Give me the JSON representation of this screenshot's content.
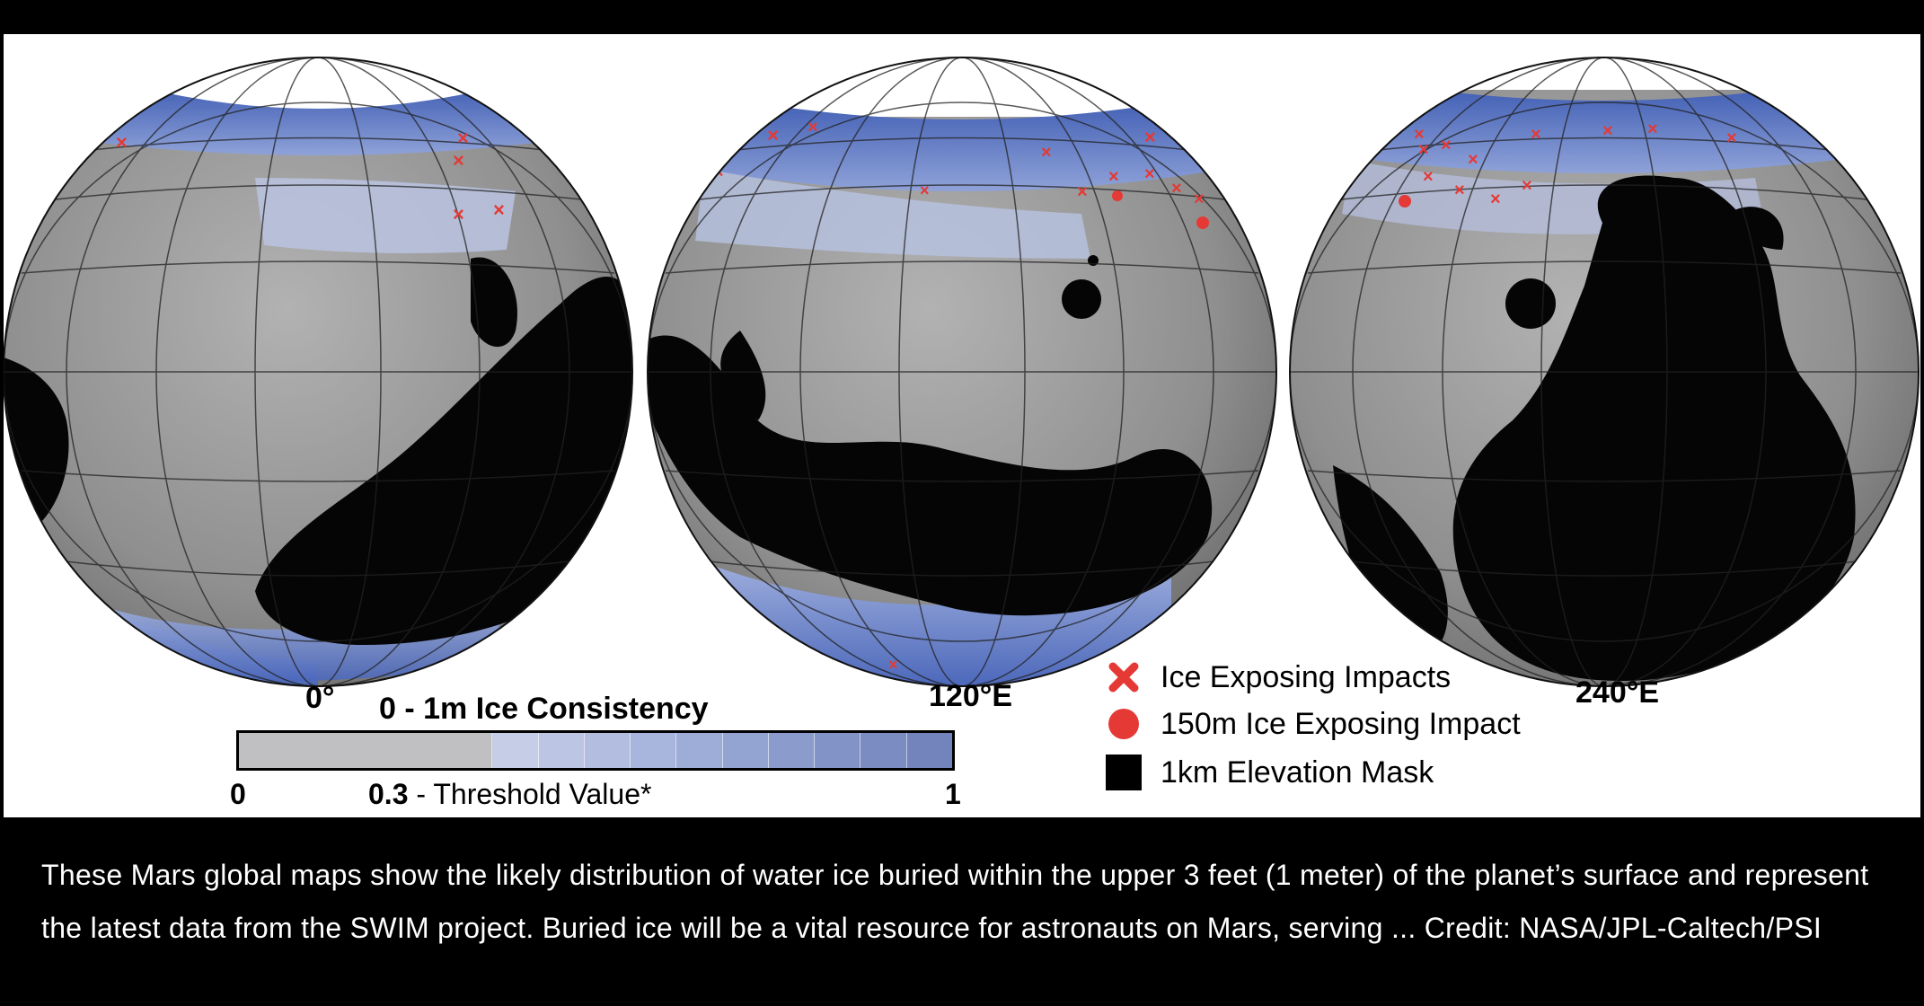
{
  "globes": [
    {
      "label": "0°"
    },
    {
      "label": "120°E"
    },
    {
      "label": "240°E"
    }
  ],
  "colorbar": {
    "title": "0 - 1m Ice Consistency",
    "min_label": "0",
    "max_label": "1",
    "threshold_value": "0.3",
    "threshold_text": " - Threshold Value*",
    "colors": [
      "#c0c0c2",
      "#c6cde6",
      "#bcc5e3",
      "#b2bde0",
      "#a8b5dc",
      "#9eadd7",
      "#94a4d2",
      "#8b9ccc",
      "#8294c7",
      "#7a8cc1",
      "#7284bb"
    ],
    "threshold": 0.3
  },
  "legend": [
    {
      "icon": "red-x-marker-icon",
      "label": "Ice Exposing Impacts",
      "color": "#e53935"
    },
    {
      "icon": "red-dot-marker-icon",
      "label": "150m Ice Exposing Impact",
      "color": "#e53935"
    },
    {
      "icon": "black-square-icon",
      "label": "1km Elevation Mask",
      "color": "#000000"
    }
  ],
  "caption": "These Mars global maps show the likely distribution of water ice buried within the upper 3 feet (1 meter) of the planet’s surface and represent the latest data from the SWIM project. Buried ice will be a vital resource for astronauts on Mars, serving ... Credit: NASA/JPL-Caltech/PSI"
}
